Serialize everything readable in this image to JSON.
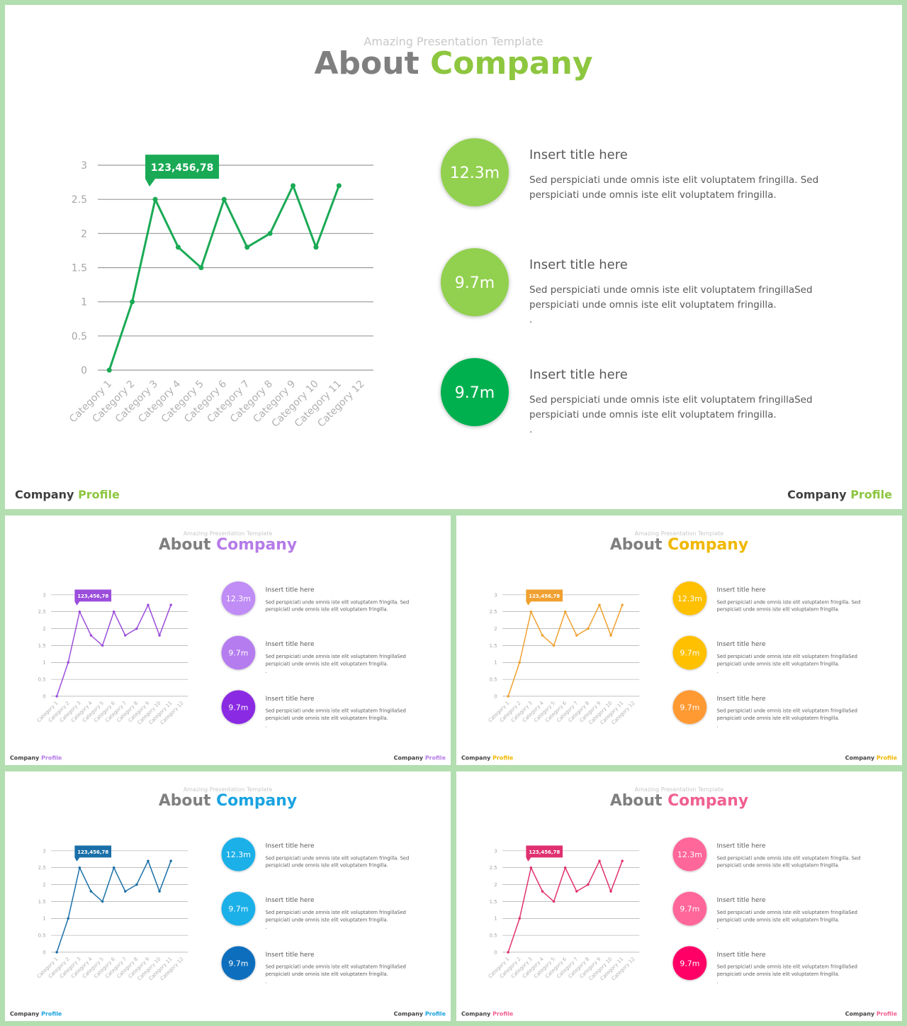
{
  "chart_data": [
    {
      "type": "line",
      "categories": [
        "Category 1",
        "Category 2",
        "Category 3",
        "Category 4",
        "Category 5",
        "Category 6",
        "Category 7",
        "Category 8",
        "Category 9",
        "Category 10",
        "Category 11",
        "Category 12"
      ],
      "values": [
        0,
        1,
        2.5,
        1.8,
        1.5,
        2.5,
        1.8,
        2,
        2.7,
        1.8,
        2.7,
        null
      ],
      "color": "#1aaa55",
      "ylim": [
        0,
        3
      ],
      "yticks": [
        0,
        0.5,
        1,
        1.5,
        2,
        2.5,
        3
      ],
      "grid": true,
      "annotation": "123,456,78"
    },
    {
      "type": "line",
      "categories": [
        "Category 1",
        "Category 2",
        "Category 3",
        "Category 4",
        "Category 5",
        "Category 6",
        "Category 7",
        "Category 8",
        "Category 9",
        "Category 10",
        "Category 11",
        "Category 12"
      ],
      "values": [
        0,
        1,
        2.5,
        1.8,
        1.5,
        2.5,
        1.8,
        2,
        2.7,
        1.8,
        2.7,
        null
      ],
      "color": "#9b4ddb",
      "ylim": [
        0,
        3
      ],
      "yticks": [
        0,
        0.5,
        1,
        1.5,
        2,
        2.5,
        3
      ],
      "grid": true,
      "annotation": "123,456,78"
    },
    {
      "type": "line",
      "categories": [
        "Category 1",
        "Category 2",
        "Category 3",
        "Category 4",
        "Category 5",
        "Category 6",
        "Category 7",
        "Category 8",
        "Category 9",
        "Category 10",
        "Category 11",
        "Category 12"
      ],
      "values": [
        0,
        1,
        2.5,
        1.8,
        1.5,
        2.5,
        1.8,
        2,
        2.7,
        1.8,
        2.7,
        null
      ],
      "color": "#f0a030",
      "ylim": [
        0,
        3
      ],
      "yticks": [
        0,
        0.5,
        1,
        1.5,
        2,
        2.5,
        3
      ],
      "grid": true,
      "annotation": "123,456,78"
    },
    {
      "type": "line",
      "categories": [
        "Category 1",
        "Category 2",
        "Category 3",
        "Category 4",
        "Category 5",
        "Category 6",
        "Category 7",
        "Category 8",
        "Category 9",
        "Category 10",
        "Category 11",
        "Category 12"
      ],
      "values": [
        0,
        1,
        2.5,
        1.8,
        1.5,
        2.5,
        1.8,
        2,
        2.7,
        1.8,
        2.7,
        null
      ],
      "color": "#1a6fa8",
      "ylim": [
        0,
        3
      ],
      "yticks": [
        0,
        0.5,
        1,
        1.5,
        2,
        2.5,
        3
      ],
      "grid": true,
      "annotation": "123,456,78"
    },
    {
      "type": "line",
      "categories": [
        "Category 1",
        "Category 2",
        "Category 3",
        "Category 4",
        "Category 5",
        "Category 6",
        "Category 7",
        "Category 8",
        "Category 9",
        "Category 10",
        "Category 11",
        "Category 12"
      ],
      "values": [
        0,
        1,
        2.5,
        1.8,
        1.5,
        2.5,
        1.8,
        2,
        2.7,
        1.8,
        2.7,
        null
      ],
      "color": "#e0306f",
      "ylim": [
        0,
        3
      ],
      "yticks": [
        0,
        0.5,
        1,
        1.5,
        2,
        2.5,
        3
      ],
      "grid": true,
      "annotation": "123,456,78"
    }
  ],
  "slides": [
    {
      "subtitle": "Amazing Presentation Template",
      "title": [
        "About",
        "Company"
      ],
      "accent": "#8dc63f",
      "footer": [
        "Company",
        "Profile"
      ],
      "items": [
        {
          "value": "12.3m",
          "color": "#92d050",
          "title": "Insert title here",
          "body": [
            "Sed perspiciati unde omnis iste elit voluptatem fringilla. Sed",
            "perspiciati unde omnis iste elit voluptatem fringilla."
          ]
        },
        {
          "value": "9.7m",
          "color": "#92d050",
          "title": "Insert title here",
          "body": [
            "Sed perspiciati unde omnis iste elit voluptatem fringillaSed",
            "perspiciati unde omnis iste elit voluptatem fringilla.",
            "."
          ]
        },
        {
          "value": "9.7m",
          "color": "#00b050",
          "title": "Insert title here",
          "body": [
            "Sed perspiciati unde omnis iste elit voluptatem fringillaSed",
            "perspiciati unde omnis iste elit voluptatem fringilla.",
            "."
          ]
        }
      ]
    },
    {
      "subtitle": "Amazing Presentation Template",
      "title": [
        "About",
        "Company"
      ],
      "accent": "#b57be8",
      "footer": [
        "Company",
        "Profile"
      ],
      "items": [
        {
          "value": "12.3m",
          "color": "#c08cf5",
          "title": "Insert title here",
          "body": [
            "Sed perspiciati unde omnis iste elit voluptatem fringilla. Sed",
            "perspiciati unde omnis iste elit voluptatem fringilla."
          ]
        },
        {
          "value": "9.7m",
          "color": "#b57cf0",
          "title": "Insert title here",
          "body": [
            "Sed perspiciati unde omnis iste elit voluptatem fringillaSed",
            "perspiciati unde omnis iste elit voluptatem fringilla.",
            "."
          ]
        },
        {
          "value": "9.7m",
          "color": "#8a2be2",
          "title": "Insert title here",
          "body": [
            "Sed perspiciati unde omnis iste elit voluptatem fringillaSed",
            "perspiciati unde omnis iste elit voluptatem fringilla.",
            "."
          ]
        }
      ]
    },
    {
      "subtitle": "Amazing Presentation Template",
      "title": [
        "About",
        "Company"
      ],
      "accent": "#f0b800",
      "footer": [
        "Company",
        "Profile"
      ],
      "items": [
        {
          "value": "12.3m",
          "color": "#ffc000",
          "title": "Insert title here",
          "body": [
            "Sed perspiciati unde omnis iste elit voluptatem fringilla. Sed",
            "perspiciati unde omnis iste elit voluptatem fringilla."
          ]
        },
        {
          "value": "9.7m",
          "color": "#ffc000",
          "title": "Insert title here",
          "body": [
            "Sed perspiciati unde omnis iste elit voluptatem fringillaSed",
            "perspiciati unde omnis iste elit voluptatem fringilla.",
            "."
          ]
        },
        {
          "value": "9.7m",
          "color": "#ff9933",
          "title": "Insert title here",
          "body": [
            "Sed perspiciati unde omnis iste elit voluptatem fringillaSed",
            "perspiciati unde omnis iste elit voluptatem fringilla.",
            "."
          ]
        }
      ]
    },
    {
      "subtitle": "Amazing Presentation Template",
      "title": [
        "About",
        "Company"
      ],
      "accent": "#1aa3e0",
      "footer": [
        "Company",
        "Profile"
      ],
      "items": [
        {
          "value": "12.3m",
          "color": "#1ab0e8",
          "title": "Insert title here",
          "body": [
            "Sed perspiciati unde omnis iste elit voluptatem fringilla. Sed",
            "perspiciati unde omnis iste elit voluptatem fringilla."
          ]
        },
        {
          "value": "9.7m",
          "color": "#1ab0e8",
          "title": "Insert title here",
          "body": [
            "Sed perspiciati unde omnis iste elit voluptatem fringillaSed",
            "perspiciati unde omnis iste elit voluptatem fringilla.",
            "."
          ]
        },
        {
          "value": "9.7m",
          "color": "#0a6ebd",
          "title": "Insert title here",
          "body": [
            "Sed perspiciati unde omnis iste elit voluptatem fringillaSed",
            "perspiciati unde omnis iste elit voluptatem fringilla.",
            "."
          ]
        }
      ]
    },
    {
      "subtitle": "Amazing Presentation Template",
      "title": [
        "About",
        "Company"
      ],
      "accent": "#f06090",
      "footer": [
        "Company",
        "Profile"
      ],
      "items": [
        {
          "value": "12.3m",
          "color": "#ff6699",
          "title": "Insert title here",
          "body": [
            "Sed perspiciati unde omnis iste elit voluptatem fringilla. Sed",
            "perspiciati unde omnis iste elit voluptatem fringilla."
          ]
        },
        {
          "value": "9.7m",
          "color": "#ff6699",
          "title": "Insert title here",
          "body": [
            "Sed perspiciati unde omnis iste elit voluptatem fringillaSed",
            "perspiciati unde omnis iste elit voluptatem fringilla.",
            "."
          ]
        },
        {
          "value": "9.7m",
          "color": "#ff0066",
          "title": "Insert title here",
          "body": [
            "Sed perspiciati unde omnis iste elit voluptatem fringillaSed",
            "perspiciati unde omnis iste elit voluptatem fringilla.",
            "."
          ]
        }
      ]
    }
  ]
}
